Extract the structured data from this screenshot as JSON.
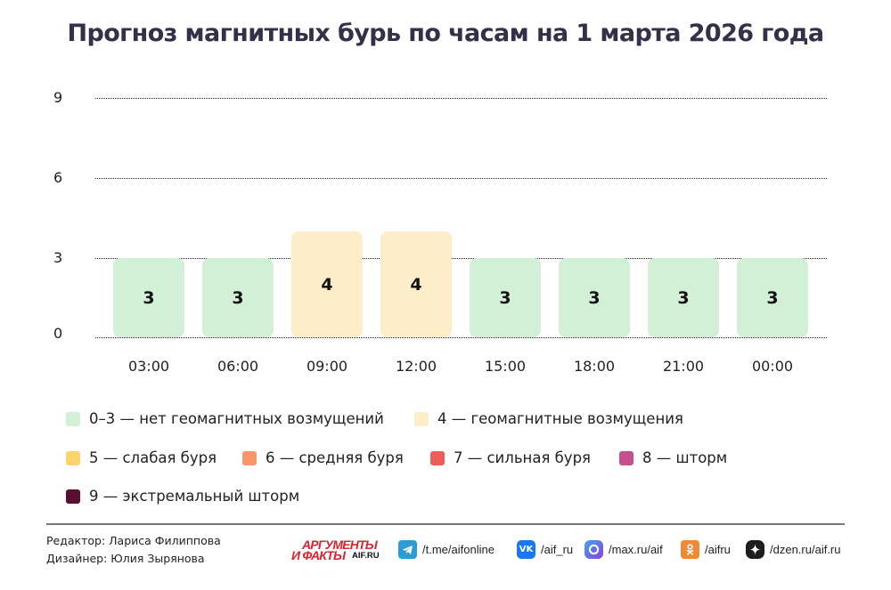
{
  "title": "Прогноз магнитных бурь по часам на 1 марта 2026 года",
  "chart_data": {
    "type": "bar",
    "title": "Прогноз магнитных бурь по часам на 1 марта 2026 года",
    "xlabel": "",
    "ylabel": "",
    "ylim": [
      0,
      9
    ],
    "yticks": [
      "9",
      "6",
      "3",
      "0"
    ],
    "grid": true,
    "categories": [
      "03:00",
      "06:00",
      "09:00",
      "12:00",
      "15:00",
      "18:00",
      "21:00",
      "00:00"
    ],
    "values": [
      3,
      3,
      4,
      4,
      3,
      3,
      3,
      3
    ],
    "value_labels": [
      "3",
      "3",
      "4",
      "4",
      "3",
      "3",
      "3",
      "3"
    ],
    "bar_colors": [
      "#d1f0d5",
      "#d1f0d5",
      "#fdedc8",
      "#fdedc8",
      "#d1f0d5",
      "#d1f0d5",
      "#d1f0d5",
      "#d1f0d5"
    ],
    "legend_position": "bottom",
    "legend": [
      {
        "label": "0–3 — нет геомагнитных возмущений",
        "color": "#d1f0d5"
      },
      {
        "label": "4 — геомагнитные возмущения",
        "color": "#fdedc8"
      },
      {
        "label": "5 — слабая буря",
        "color": "#fbd46d"
      },
      {
        "label": "6 — средняя буря",
        "color": "#f99566"
      },
      {
        "label": "7 — сильная буря",
        "color": "#ec5e57"
      },
      {
        "label": "8 — шторм",
        "color": "#c64f8f"
      },
      {
        "label": "9 — экстремальный шторм",
        "color": "#5a0f32"
      }
    ]
  },
  "footer": {
    "editor": "Редактор: Лариса Филиппова",
    "designer": "Дизайнер: Юлия Зырянова",
    "logo": {
      "line1": "АРГУМЕНТЫ",
      "line2": "И ФАКТЫ",
      "site": "AIF.RU"
    },
    "social": [
      {
        "icon": "telegram-icon",
        "label": "/t.me/aifonline",
        "color": "#2f9bd6"
      },
      {
        "icon": "vk-icon",
        "label": "/aif_ru",
        "color": "#1a78f2"
      },
      {
        "icon": "max-icon",
        "label": "/max.ru/aif",
        "color": "#6a45e0"
      },
      {
        "icon": "odnoklassniki-icon",
        "label": "/aifru",
        "color": "#ee8a34"
      },
      {
        "icon": "dzen-icon",
        "label": "/dzen.ru/aif.ru",
        "color": "#1d1d1f"
      }
    ]
  }
}
